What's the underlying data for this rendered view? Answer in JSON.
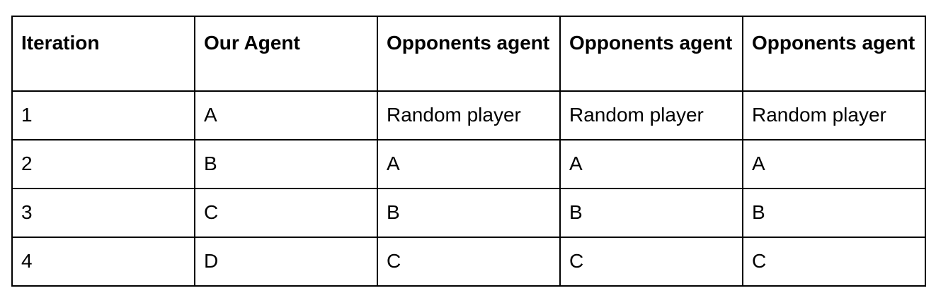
{
  "table": {
    "headers": [
      "Iteration",
      "Our Agent",
      "Opponents agent",
      "Opponents agent",
      "Opponents agent"
    ],
    "rows": [
      [
        "1",
        "A",
        "Random player",
        "Random player",
        "Random player"
      ],
      [
        "2",
        "B",
        "A",
        "A",
        "A"
      ],
      [
        "3",
        "C",
        "B",
        "B",
        "B"
      ],
      [
        "4",
        "D",
        "C",
        "C",
        "C"
      ]
    ]
  }
}
